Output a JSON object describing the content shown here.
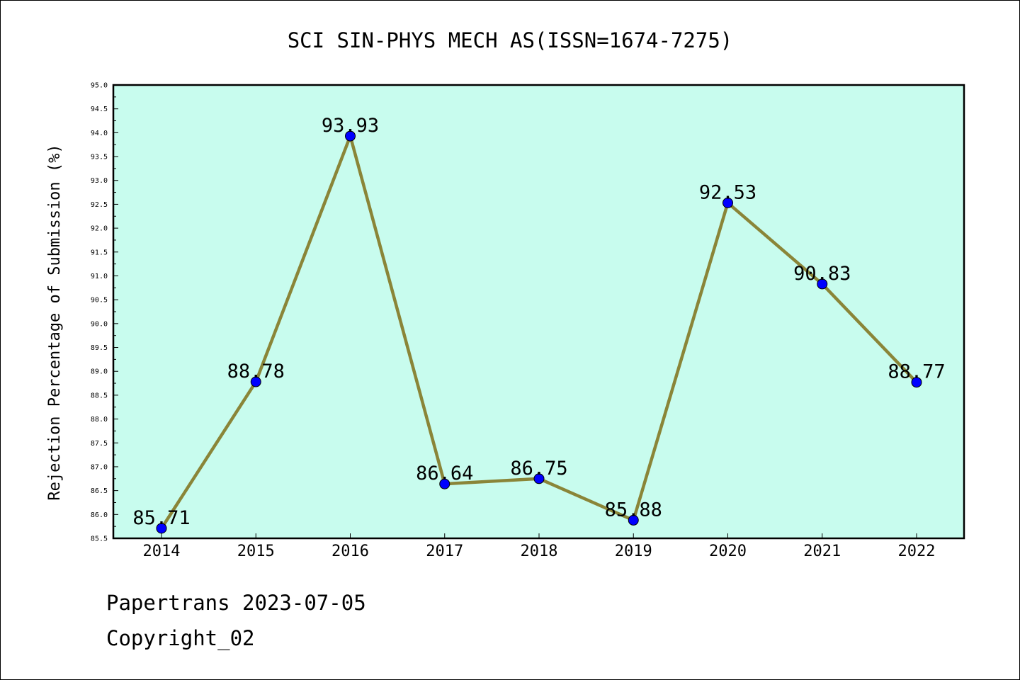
{
  "chart_data": {
    "type": "line",
    "title": "SCI SIN-PHYS MECH AS(ISSN=1674-7275)",
    "xlabel": "",
    "ylabel": "Rejection Percentage of Submission (%)",
    "categories": [
      "2014",
      "2015",
      "2016",
      "2017",
      "2018",
      "2019",
      "2020",
      "2021",
      "2022"
    ],
    "values": [
      85.71,
      88.78,
      93.93,
      86.64,
      86.75,
      85.88,
      92.53,
      90.83,
      88.77
    ],
    "value_labels": [
      "85.71",
      "88.78",
      "93.93",
      "86.64",
      "86.75",
      "85.88",
      "92.53",
      "90.83",
      "88.77"
    ],
    "ylim": [
      85.5,
      95.0
    ],
    "yticks": [
      "85.5",
      "86.0",
      "86.5",
      "87.0",
      "87.5",
      "88.0",
      "88.5",
      "89.0",
      "89.5",
      "90.0",
      "90.5",
      "91.0",
      "91.5",
      "92.0",
      "92.5",
      "93.0",
      "93.5",
      "94.0",
      "94.5",
      "95.0"
    ],
    "grid": false,
    "colors": {
      "plot_background": "#c8fcee",
      "line": "#8a8538",
      "marker": "#0000ff"
    }
  },
  "footer": {
    "line1": "Papertrans 2023-07-05",
    "line2": "Copyright_02"
  }
}
